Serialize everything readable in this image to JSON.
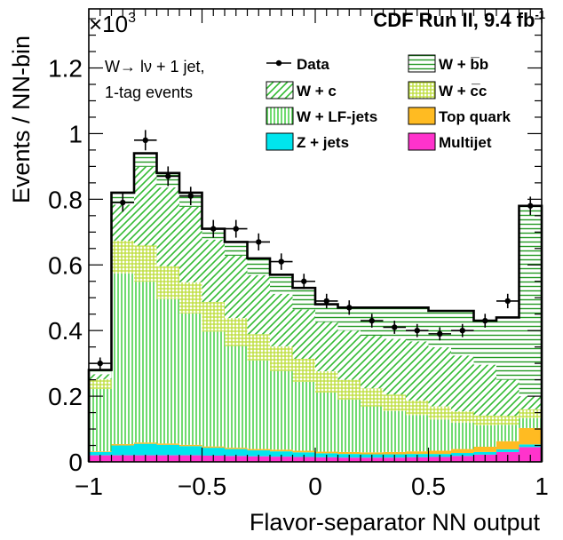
{
  "chart_data": {
    "type": "bar",
    "stacked": true,
    "header": "CDF Run II, 9.4 fb",
    "header_superscript": "-1",
    "scale_label": "×10",
    "scale_exponent": "3",
    "xlabel": "Flavor-separator NN output",
    "ylabel": "Events / NN-bin",
    "xlim": [
      -1,
      1
    ],
    "ylim": [
      0,
      1.38
    ],
    "x_ticks": [
      "−1",
      "−0.5",
      "0",
      "0.5",
      "1"
    ],
    "x_tick_values": [
      -1,
      -0.5,
      0,
      0.5,
      1
    ],
    "y_ticks": [
      "0",
      "0.2",
      "0.4",
      "0.6",
      "0.8",
      "1",
      "1.2"
    ],
    "y_tick_values": [
      0,
      0.2,
      0.4,
      0.6,
      0.8,
      1.0,
      1.2
    ],
    "annotation_lines": [
      "W→  lν + 1 jet,",
      "1-tag events"
    ],
    "bin_edges": [
      -1.0,
      -0.9,
      -0.8,
      -0.7,
      -0.6,
      -0.5,
      -0.4,
      -0.3,
      -0.2,
      -0.1,
      0.0,
      0.1,
      0.2,
      0.3,
      0.4,
      0.5,
      0.6,
      0.7,
      0.8,
      0.9,
      1.0
    ],
    "series": [
      {
        "name": "Multijet",
        "color": "#ff33cc",
        "pattern": "solid",
        "values": [
          0.02,
          0.02,
          0.02,
          0.02,
          0.02,
          0.019,
          0.018,
          0.017,
          0.016,
          0.015,
          0.014,
          0.013,
          0.013,
          0.013,
          0.014,
          0.015,
          0.018,
          0.022,
          0.03,
          0.045
        ]
      },
      {
        "name": "Z + jets",
        "color": "#00e5ee",
        "pattern": "solid",
        "values": [
          0.01,
          0.03,
          0.035,
          0.032,
          0.028,
          0.024,
          0.021,
          0.018,
          0.016,
          0.014,
          0.012,
          0.011,
          0.01,
          0.01,
          0.01,
          0.009,
          0.009,
          0.008,
          0.008,
          0.008
        ]
      },
      {
        "name": "Top quark",
        "color": "#ffbb22",
        "pattern": "solid",
        "values": [
          0.002,
          0.004,
          0.004,
          0.004,
          0.004,
          0.004,
          0.004,
          0.004,
          0.005,
          0.005,
          0.005,
          0.006,
          0.006,
          0.007,
          0.008,
          0.01,
          0.012,
          0.016,
          0.025,
          0.05
        ]
      },
      {
        "name": "W + LF-jets",
        "color": "#33cc33",
        "pattern": "vertical",
        "values": [
          0.19,
          0.52,
          0.49,
          0.44,
          0.4,
          0.35,
          0.31,
          0.27,
          0.24,
          0.21,
          0.18,
          0.16,
          0.14,
          0.125,
          0.11,
          0.095,
          0.08,
          0.065,
          0.05,
          0.03
        ]
      },
      {
        "name": "W + c̅c",
        "color": "#bbdd33",
        "pattern": "grid",
        "values": [
          0.03,
          0.1,
          0.11,
          0.1,
          0.095,
          0.09,
          0.085,
          0.08,
          0.075,
          0.07,
          0.065,
          0.06,
          0.055,
          0.05,
          0.045,
          0.04,
          0.035,
          0.03,
          0.027,
          0.027
        ]
      },
      {
        "name": "W + c",
        "color": "#33bb33",
        "pattern": "diagonal",
        "values": [
          0.015,
          0.11,
          0.24,
          0.24,
          0.23,
          0.19,
          0.19,
          0.18,
          0.16,
          0.15,
          0.15,
          0.15,
          0.16,
          0.17,
          0.18,
          0.18,
          0.17,
          0.155,
          0.11,
          0.04
        ]
      },
      {
        "name": "W + b̅b",
        "color": "#229922",
        "pattern": "horizontal",
        "values": [
          0.013,
          0.036,
          0.041,
          0.044,
          0.043,
          0.033,
          0.042,
          0.051,
          0.058,
          0.066,
          0.054,
          0.07,
          0.086,
          0.095,
          0.103,
          0.111,
          0.136,
          0.134,
          0.19,
          0.58
        ]
      }
    ],
    "data": {
      "name": "Data",
      "x": [
        -0.95,
        -0.85,
        -0.75,
        -0.65,
        -0.55,
        -0.45,
        -0.35,
        -0.25,
        -0.15,
        -0.05,
        0.05,
        0.15,
        0.25,
        0.35,
        0.45,
        0.55,
        0.65,
        0.75,
        0.85,
        0.95
      ],
      "y": [
        0.3,
        0.79,
        0.98,
        0.87,
        0.81,
        0.71,
        0.71,
        0.67,
        0.61,
        0.55,
        0.49,
        0.47,
        0.43,
        0.41,
        0.4,
        0.39,
        0.4,
        0.43,
        0.49,
        0.78
      ],
      "err": [
        0.018,
        0.028,
        0.031,
        0.03,
        0.028,
        0.027,
        0.027,
        0.026,
        0.025,
        0.023,
        0.022,
        0.022,
        0.021,
        0.02,
        0.02,
        0.02,
        0.02,
        0.021,
        0.022,
        0.028
      ]
    },
    "legend": {
      "columns": [
        [
          "Data",
          "W + c",
          "W + LF-jets",
          "Z + jets"
        ],
        [
          "W + b̅b",
          "W + c̅c",
          "Top quark",
          "Multijet"
        ]
      ]
    },
    "grid": false
  }
}
